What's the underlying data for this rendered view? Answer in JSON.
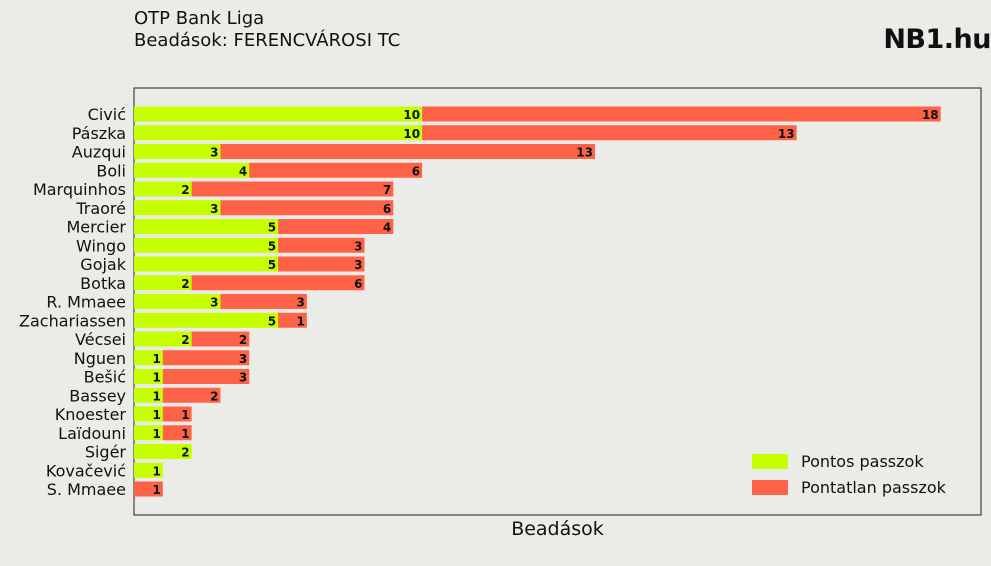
{
  "header": {
    "title": "OTP Bank Liga",
    "subtitle": "Beadások: FERENCVÁROSI TC",
    "brand": "NB1.hu"
  },
  "colors": {
    "accurate": "#c6ff00",
    "inaccurate": "#ff6347",
    "background": "#ebece7"
  },
  "chart_data": {
    "type": "bar",
    "orientation": "horizontal",
    "stacked": true,
    "xlabel": "Beadások",
    "ylabel": "",
    "xlim": [
      0,
      29.4
    ],
    "grid": false,
    "legend_position": "bottom-right",
    "categories": [
      "Civić",
      "Pászka",
      "Auzqui",
      "Boli",
      "Marquinhos",
      "Traoré",
      "Mercier",
      "Wingo",
      "Gojak",
      "Botka",
      "R. Mmaee",
      "Zachariassen",
      "Vécsei",
      "Nguen",
      "Bešić",
      "Bassey",
      "Knoester",
      "Laïdouni",
      "Sigér",
      "Kovačević",
      "S. Mmaee"
    ],
    "series": [
      {
        "name": "Pontos passzok",
        "color": "#c6ff00",
        "values": [
          10,
          10,
          3,
          4,
          2,
          3,
          5,
          5,
          5,
          2,
          3,
          5,
          2,
          1,
          1,
          1,
          1,
          1,
          2,
          1,
          0
        ]
      },
      {
        "name": "Pontatlan passzok",
        "color": "#ff6347",
        "values": [
          18,
          13,
          13,
          6,
          7,
          6,
          4,
          3,
          3,
          6,
          3,
          1,
          2,
          3,
          3,
          2,
          1,
          1,
          0,
          0,
          1
        ]
      }
    ]
  }
}
